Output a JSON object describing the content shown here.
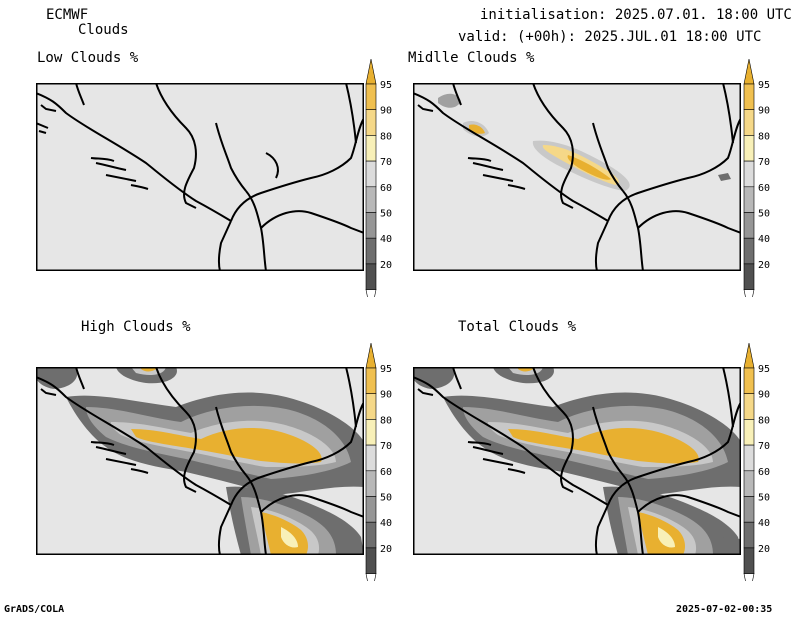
{
  "header": {
    "model": "ECMWF",
    "product": "Clouds",
    "init": "initialisation: 2025.07.01. 18:00 UTC",
    "valid": "valid: (+00h): 2025.JUL.01 18:00 UTC"
  },
  "panels": [
    {
      "title": "Low Clouds %"
    },
    {
      "title": "Midlle Clouds %"
    },
    {
      "title": "High Clouds %"
    },
    {
      "title": "Total Clouds %"
    }
  ],
  "colorbar": {
    "labels": [
      "95",
      "90",
      "80",
      "70",
      "60",
      "50",
      "40",
      "20"
    ],
    "colors": [
      "#e8b030",
      "#f0c050",
      "#f5d888",
      "#f8f0b8",
      "#dcdcdc",
      "#b8b8b8",
      "#969696",
      "#6e6e6e",
      "#505050"
    ]
  },
  "map_colors": {
    "background": "#e6e6e6",
    "dark": "#6e6e6e",
    "mid": "#a0a0a0",
    "light": "#c8c8c8",
    "pale": "#f8f0b8",
    "cream": "#f5d888",
    "orange": "#e8b030"
  },
  "footer": {
    "left": "GrADS/COLA",
    "right": "2025-07-02-00:35"
  }
}
